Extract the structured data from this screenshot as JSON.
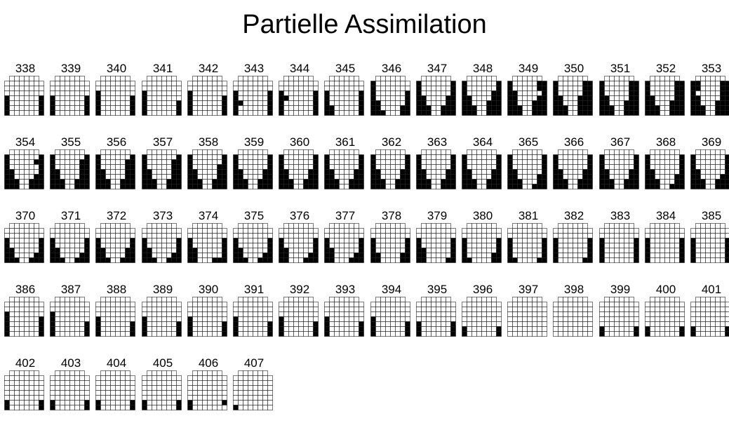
{
  "title": "Partielle Assimilation",
  "colors": {
    "on": "#000000",
    "off": "#ffffff",
    "grid": "#222222"
  },
  "grid": {
    "rows": 8,
    "cols": 8
  },
  "frames": [
    {
      "label": "338",
      "rows": [
        "00000000",
        "00000000",
        "00000000",
        "00000000",
        "10000001",
        "10000001",
        "10000001",
        "10000001"
      ]
    },
    {
      "label": "339",
      "rows": [
        "00000000",
        "00000000",
        "00000000",
        "00000000",
        "10000001",
        "10000001",
        "10000001",
        "10000001"
      ]
    },
    {
      "label": "340",
      "rows": [
        "00000000",
        "00000000",
        "00000000",
        "10000000",
        "10000001",
        "10000001",
        "10000001",
        "10000001"
      ]
    },
    {
      "label": "341",
      "rows": [
        "00000000",
        "00000000",
        "00000000",
        "10000000",
        "10000000",
        "10000001",
        "10000001",
        "10000001"
      ]
    },
    {
      "label": "342",
      "rows": [
        "00000000",
        "00000000",
        "00000000",
        "10000000",
        "10000001",
        "10000001",
        "10000001",
        "10000001"
      ]
    },
    {
      "label": "343",
      "rows": [
        "00000000",
        "00000000",
        "00000000",
        "10000001",
        "10000001",
        "11000001",
        "10000001",
        "10000001"
      ]
    },
    {
      "label": "344",
      "rows": [
        "00000000",
        "00000000",
        "00000000",
        "10000001",
        "11000001",
        "10000001",
        "10000001",
        "10000001"
      ]
    },
    {
      "label": "345",
      "rows": [
        "00000000",
        "00000000",
        "00000000",
        "10000001",
        "10000001",
        "10000001",
        "11000001",
        "11000001"
      ]
    },
    {
      "label": "346",
      "rows": [
        "00000000",
        "10000000",
        "10000000",
        "10000001",
        "10000001",
        "11000001",
        "11000011",
        "11100011"
      ]
    },
    {
      "label": "347",
      "rows": [
        "00000000",
        "10000001",
        "10000001",
        "10000001",
        "11000011",
        "11000011",
        "11100111",
        "11100111"
      ]
    },
    {
      "label": "348",
      "rows": [
        "00000000",
        "10000001",
        "10000001",
        "10000011",
        "11000011",
        "11000111",
        "11100111",
        "11100111"
      ]
    },
    {
      "label": "349",
      "rows": [
        "00000000",
        "10000011",
        "10000011",
        "11000001",
        "11000011",
        "11000111",
        "11100111",
        "11100111"
      ]
    },
    {
      "label": "350",
      "rows": [
        "00000000",
        "10000011",
        "10000011",
        "10000011",
        "11000111",
        "11000111",
        "11100111",
        "11100111"
      ]
    },
    {
      "label": "351",
      "rows": [
        "00000000",
        "10000011",
        "10000011",
        "10000011",
        "11000011",
        "11000111",
        "11100111",
        "11100111"
      ]
    },
    {
      "label": "352",
      "rows": [
        "00000000",
        "10000011",
        "10000011",
        "10000011",
        "11000011",
        "11000111",
        "11100111",
        "11100111"
      ]
    },
    {
      "label": "353",
      "rows": [
        "00000000",
        "11000011",
        "11000011",
        "10000011",
        "11000011",
        "11000111",
        "11100111",
        "11100111"
      ]
    },
    {
      "label": "354",
      "rows": [
        "00000000",
        "10000001",
        "10000011",
        "10000001",
        "11000001",
        "11000011",
        "11100111",
        "11100111"
      ]
    },
    {
      "label": "355",
      "rows": [
        "00000000",
        "10000001",
        "10000011",
        "10000011",
        "11000011",
        "11000011",
        "11100111",
        "11100111"
      ]
    },
    {
      "label": "356",
      "rows": [
        "00000000",
        "10000001",
        "10000011",
        "10000011",
        "11000011",
        "11000011",
        "11100111",
        "11100111"
      ]
    },
    {
      "label": "357",
      "rows": [
        "00000000",
        "10000001",
        "10000011",
        "10000011",
        "11000011",
        "11000011",
        "11100111",
        "11100111"
      ]
    },
    {
      "label": "358",
      "rows": [
        "00000000",
        "10000001",
        "10000001",
        "10000011",
        "11000011",
        "11000011",
        "11100111",
        "11100111"
      ]
    },
    {
      "label": "359",
      "rows": [
        "00000000",
        "10000001",
        "10000001",
        "10000001",
        "11000011",
        "11000011",
        "11100111",
        "11100111"
      ]
    },
    {
      "label": "360",
      "rows": [
        "00000000",
        "10000001",
        "10000001",
        "10000001",
        "11000011",
        "11000011",
        "11100111",
        "11100111"
      ]
    },
    {
      "label": "361",
      "rows": [
        "00000000",
        "10000001",
        "10000001",
        "10000001",
        "11000011",
        "11000011",
        "11100111",
        "11100111"
      ]
    },
    {
      "label": "362",
      "rows": [
        "00000000",
        "10000001",
        "10000001",
        "10000001",
        "11000011",
        "11000011",
        "11100111",
        "11100111"
      ]
    },
    {
      "label": "363",
      "rows": [
        "00000000",
        "10000001",
        "10000001",
        "10000001",
        "11000011",
        "11000011",
        "11100111",
        "11100111"
      ]
    },
    {
      "label": "364",
      "rows": [
        "00000000",
        "10000001",
        "10000001",
        "10000001",
        "11000011",
        "11000011",
        "11100111",
        "11100111"
      ]
    },
    {
      "label": "365",
      "rows": [
        "00000000",
        "10000001",
        "10000001",
        "10000001",
        "11000001",
        "11000011",
        "11100011",
        "11100111"
      ]
    },
    {
      "label": "366",
      "rows": [
        "00000000",
        "10000001",
        "10000001",
        "10000001",
        "11000011",
        "11000011",
        "11100111",
        "11100111"
      ]
    },
    {
      "label": "367",
      "rows": [
        "00000000",
        "10000001",
        "10000001",
        "10000001",
        "11000011",
        "11000011",
        "11100111",
        "11100111"
      ]
    },
    {
      "label": "368",
      "rows": [
        "00000000",
        "10000001",
        "10000001",
        "10000001",
        "11000001",
        "11000011",
        "11100011",
        "11100111"
      ]
    },
    {
      "label": "369",
      "rows": [
        "00000000",
        "10000001",
        "10000001",
        "10000001",
        "11000001",
        "11000011",
        "11100111",
        "11100111"
      ]
    },
    {
      "label": "370",
      "rows": [
        "00000000",
        "00000000",
        "00000000",
        "10000001",
        "10000001",
        "11000001",
        "11000011",
        "11100111"
      ]
    },
    {
      "label": "371",
      "rows": [
        "00000000",
        "00000000",
        "00000000",
        "10000001",
        "10000001",
        "11000001",
        "11000011",
        "11100111"
      ]
    },
    {
      "label": "372",
      "rows": [
        "00000000",
        "00000000",
        "00000000",
        "10000001",
        "10000001",
        "11000011",
        "11000011",
        "11100111"
      ]
    },
    {
      "label": "373",
      "rows": [
        "00000000",
        "00000000",
        "00000000",
        "10000001",
        "10000001",
        "11000001",
        "11000011",
        "11100111"
      ]
    },
    {
      "label": "374",
      "rows": [
        "00000000",
        "00000000",
        "00000000",
        "10000001",
        "10000001",
        "11000001",
        "11000001",
        "11000111"
      ]
    },
    {
      "label": "375",
      "rows": [
        "00000000",
        "00000000",
        "00000000",
        "10000001",
        "10000001",
        "11000001",
        "11000011",
        "11100111"
      ]
    },
    {
      "label": "376",
      "rows": [
        "00000000",
        "00000000",
        "00000000",
        "10000001",
        "10000001",
        "11000001",
        "11000011",
        "11000111"
      ]
    },
    {
      "label": "377",
      "rows": [
        "00000000",
        "00000000",
        "00000000",
        "10000001",
        "10000001",
        "11000001",
        "11000011",
        "11000111"
      ]
    },
    {
      "label": "378",
      "rows": [
        "00000000",
        "00000000",
        "00000000",
        "10000001",
        "10000001",
        "10000001",
        "11000011",
        "11000011"
      ]
    },
    {
      "label": "379",
      "rows": [
        "00000000",
        "00000000",
        "00000000",
        "10000001",
        "10000001",
        "11000001",
        "11000001",
        "11000011"
      ]
    },
    {
      "label": "380",
      "rows": [
        "00000000",
        "00000000",
        "00000000",
        "10000001",
        "10000001",
        "10000001",
        "10000011",
        "11000011"
      ]
    },
    {
      "label": "381",
      "rows": [
        "00000000",
        "00000000",
        "00000000",
        "10000001",
        "10000001",
        "10000001",
        "10000001",
        "11000011"
      ]
    },
    {
      "label": "382",
      "rows": [
        "00000000",
        "00000000",
        "00000000",
        "10000001",
        "10000001",
        "10000001",
        "10000001",
        "10000011"
      ]
    },
    {
      "label": "383",
      "rows": [
        "00000000",
        "00000000",
        "00000000",
        "10000001",
        "10000001",
        "10000001",
        "10000001",
        "10000001"
      ]
    },
    {
      "label": "384",
      "rows": [
        "00000000",
        "00000000",
        "00000000",
        "10000001",
        "10000001",
        "10000001",
        "10000001",
        "10000001"
      ]
    },
    {
      "label": "385",
      "rows": [
        "00000000",
        "00000000",
        "00000000",
        "10000001",
        "10000001",
        "10000001",
        "10000001",
        "10000001"
      ]
    },
    {
      "label": "386",
      "rows": [
        "00000000",
        "00000000",
        "00000000",
        "10000000",
        "10000001",
        "10000001",
        "10000001",
        "10000001"
      ]
    },
    {
      "label": "387",
      "rows": [
        "00000000",
        "00000000",
        "00000000",
        "10000000",
        "10000000",
        "10000001",
        "10000001",
        "10000001"
      ]
    },
    {
      "label": "388",
      "rows": [
        "00000000",
        "00000000",
        "00000000",
        "00000000",
        "10000000",
        "10000001",
        "10000001",
        "10000001"
      ]
    },
    {
      "label": "389",
      "rows": [
        "00000000",
        "00000000",
        "00000000",
        "00000000",
        "10000000",
        "10000001",
        "10000001",
        "10000001"
      ]
    },
    {
      "label": "390",
      "rows": [
        "00000000",
        "00000000",
        "00000000",
        "00000000",
        "10000000",
        "10000001",
        "10000001",
        "10000001"
      ]
    },
    {
      "label": "391",
      "rows": [
        "00000000",
        "00000000",
        "00000000",
        "00000000",
        "10000000",
        "10000001",
        "10000001",
        "10000001"
      ]
    },
    {
      "label": "392",
      "rows": [
        "00000000",
        "00000000",
        "00000000",
        "00000000",
        "10000000",
        "10000001",
        "10000001",
        "10000001"
      ]
    },
    {
      "label": "393",
      "rows": [
        "00000000",
        "00000000",
        "00000000",
        "00000000",
        "10000000",
        "10000001",
        "10000001",
        "10000001"
      ]
    },
    {
      "label": "394",
      "rows": [
        "00000000",
        "00000000",
        "00000000",
        "00000000",
        "10000000",
        "10000001",
        "10000001",
        "10000001"
      ]
    },
    {
      "label": "395",
      "rows": [
        "00000000",
        "00000000",
        "00000000",
        "00000000",
        "00000000",
        "10000001",
        "10000001",
        "10000001"
      ]
    },
    {
      "label": "396",
      "rows": [
        "00000000",
        "00000000",
        "00000000",
        "00000000",
        "00000000",
        "00000000",
        "10000001",
        "10000001"
      ]
    },
    {
      "label": "397",
      "rows": [
        "00000000",
        "00000000",
        "00000000",
        "00000000",
        "00000000",
        "00000000",
        "00000000",
        "00000000"
      ]
    },
    {
      "label": "398",
      "rows": [
        "00000000",
        "00000000",
        "00000000",
        "00000000",
        "00000000",
        "00000000",
        "00000000",
        "00000000"
      ]
    },
    {
      "label": "399",
      "rows": [
        "00000000",
        "00000000",
        "00000000",
        "00000000",
        "00000000",
        "00000000",
        "10000001",
        "10000001"
      ]
    },
    {
      "label": "400",
      "rows": [
        "00000000",
        "00000000",
        "00000000",
        "00000000",
        "00000000",
        "00000000",
        "10000001",
        "10000001"
      ]
    },
    {
      "label": "401",
      "rows": [
        "00000000",
        "00000000",
        "00000000",
        "00000000",
        "00000000",
        "00000000",
        "10000001",
        "10000001"
      ]
    },
    {
      "label": "402",
      "rows": [
        "00000000",
        "00000000",
        "00000000",
        "00000000",
        "00000000",
        "00000000",
        "10000001",
        "10000001"
      ]
    },
    {
      "label": "403",
      "rows": [
        "00000000",
        "00000000",
        "00000000",
        "00000000",
        "00000000",
        "00000000",
        "10000001",
        "10000001"
      ]
    },
    {
      "label": "404",
      "rows": [
        "00000000",
        "00000000",
        "00000000",
        "00000000",
        "00000000",
        "00000000",
        "10000001",
        "10000001"
      ]
    },
    {
      "label": "405",
      "rows": [
        "00000000",
        "00000000",
        "00000000",
        "00000000",
        "00000000",
        "00000000",
        "10000001",
        "10000001"
      ]
    },
    {
      "label": "406",
      "rows": [
        "00000000",
        "00000000",
        "00000000",
        "00000000",
        "00000000",
        "00000000",
        "10000001",
        "10000000"
      ]
    },
    {
      "label": "407",
      "rows": [
        "00000000",
        "00000000",
        "00000000",
        "00000000",
        "00000000",
        "00000000",
        "00000000",
        "10000000"
      ]
    }
  ]
}
